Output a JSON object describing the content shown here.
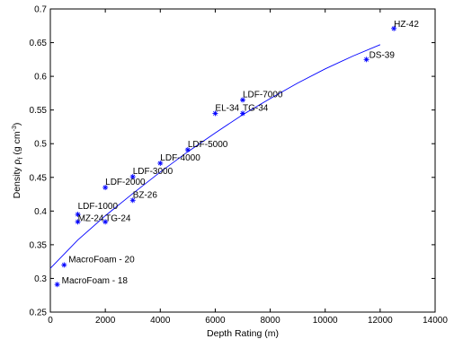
{
  "chart_data": {
    "type": "scatter",
    "xlabel": "Depth Rating (m)",
    "ylabel": "Density ρf (g cm-3)",
    "ylabel_parts": {
      "prefix": "Density ",
      "symbol": "ρ",
      "sub": "f",
      "mid": " (g cm",
      "sup": "-3",
      "suffix": ")"
    },
    "xlim": [
      0,
      14000
    ],
    "ylim": [
      0.25,
      0.7
    ],
    "xticks": [
      0,
      2000,
      4000,
      6000,
      8000,
      10000,
      12000,
      14000
    ],
    "xtick_labels": [
      "0",
      "2000",
      "4000",
      "6000",
      "8000",
      "10000",
      "12000",
      "14000"
    ],
    "yticks": [
      0.25,
      0.3,
      0.35,
      0.4,
      0.45,
      0.5,
      0.55,
      0.6,
      0.65,
      0.7
    ],
    "ytick_labels": [
      "0.25",
      "0.3",
      "0.35",
      "0.4",
      "0.45",
      "0.5",
      "0.55",
      "0.6",
      "0.65",
      "0.7"
    ],
    "grid": false,
    "marker_color": "#0000ff",
    "fit_color": "#0000ff",
    "points": [
      {
        "label": "MacroFoam - 18",
        "x": 250,
        "y": 0.291
      },
      {
        "label": "MacroFoam - 20",
        "x": 500,
        "y": 0.32
      },
      {
        "label": "LDF-1000",
        "x": 1000,
        "y": 0.395
      },
      {
        "label": "MZ-24",
        "x": 1000,
        "y": 0.384
      },
      {
        "label": "TG-24",
        "x": 2000,
        "y": 0.384
      },
      {
        "label": "LDF-2000",
        "x": 2000,
        "y": 0.435
      },
      {
        "label": "BZ-26",
        "x": 3000,
        "y": 0.416
      },
      {
        "label": "LDF-3000",
        "x": 3000,
        "y": 0.451
      },
      {
        "label": "LDF-4000",
        "x": 4000,
        "y": 0.471
      },
      {
        "label": "LDF-5000",
        "x": 5000,
        "y": 0.491
      },
      {
        "label": "EL-34",
        "x": 6000,
        "y": 0.545
      },
      {
        "label": "TG-34",
        "x": 7000,
        "y": 0.545
      },
      {
        "label": "LDF-7000",
        "x": 7000,
        "y": 0.565
      },
      {
        "label": "DS-39",
        "x": 11500,
        "y": 0.625
      },
      {
        "label": "HZ-42",
        "x": 12500,
        "y": 0.671
      }
    ],
    "fit_curve": {
      "x": [
        0,
        1000,
        2000,
        3000,
        4000,
        5000,
        6000,
        7000,
        8000,
        9000,
        10000,
        11000,
        12000
      ],
      "y": [
        0.315,
        0.357,
        0.393,
        0.426,
        0.458,
        0.488,
        0.516,
        0.543,
        0.567,
        0.59,
        0.611,
        0.63,
        0.647
      ]
    }
  }
}
